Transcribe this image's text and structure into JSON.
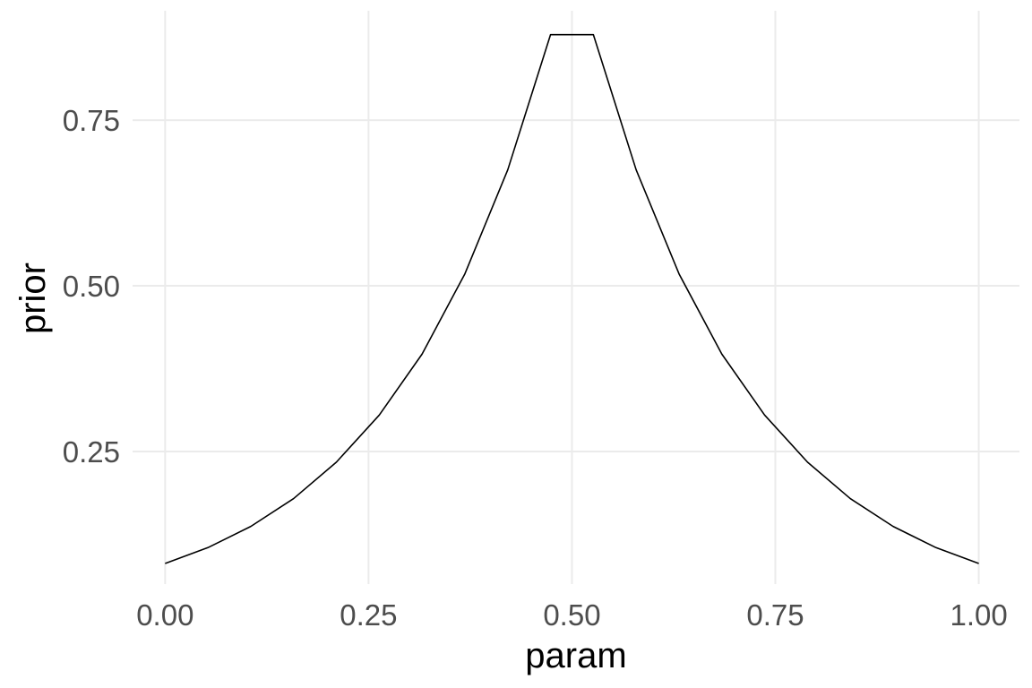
{
  "chart_data": {
    "type": "line",
    "title": "",
    "xlabel": "param",
    "ylabel": "prior",
    "xlim": [
      -0.04,
      1.05
    ],
    "ylim": [
      0.05,
      0.915
    ],
    "xticks": [
      0.0,
      0.25,
      0.5,
      0.75,
      1.0
    ],
    "xtick_labels": [
      "0.00",
      "0.25",
      "0.50",
      "0.75",
      "1.00"
    ],
    "yticks": [
      0.25,
      0.5,
      0.75
    ],
    "ytick_labels": [
      "0.25",
      "0.50",
      "0.75"
    ],
    "grid": true,
    "legend": "none",
    "colors": {
      "line": "#000000",
      "grid": "#ebebeb",
      "tick_text": "#4d4d4d",
      "title_text": "#000000"
    },
    "series": [
      {
        "x": [
          0.0,
          0.0526,
          0.1053,
          0.1579,
          0.2105,
          0.2632,
          0.3158,
          0.3684,
          0.4211,
          0.4737,
          0.5263,
          0.5789,
          0.6316,
          0.6842,
          0.7368,
          0.7895,
          0.8421,
          0.8947,
          0.9474,
          1.0
        ],
        "values": [
          0.081,
          0.105,
          0.137,
          0.179,
          0.234,
          0.305,
          0.397,
          0.518,
          0.675,
          0.879,
          0.879,
          0.675,
          0.518,
          0.397,
          0.305,
          0.234,
          0.179,
          0.137,
          0.105,
          0.081
        ]
      }
    ]
  }
}
